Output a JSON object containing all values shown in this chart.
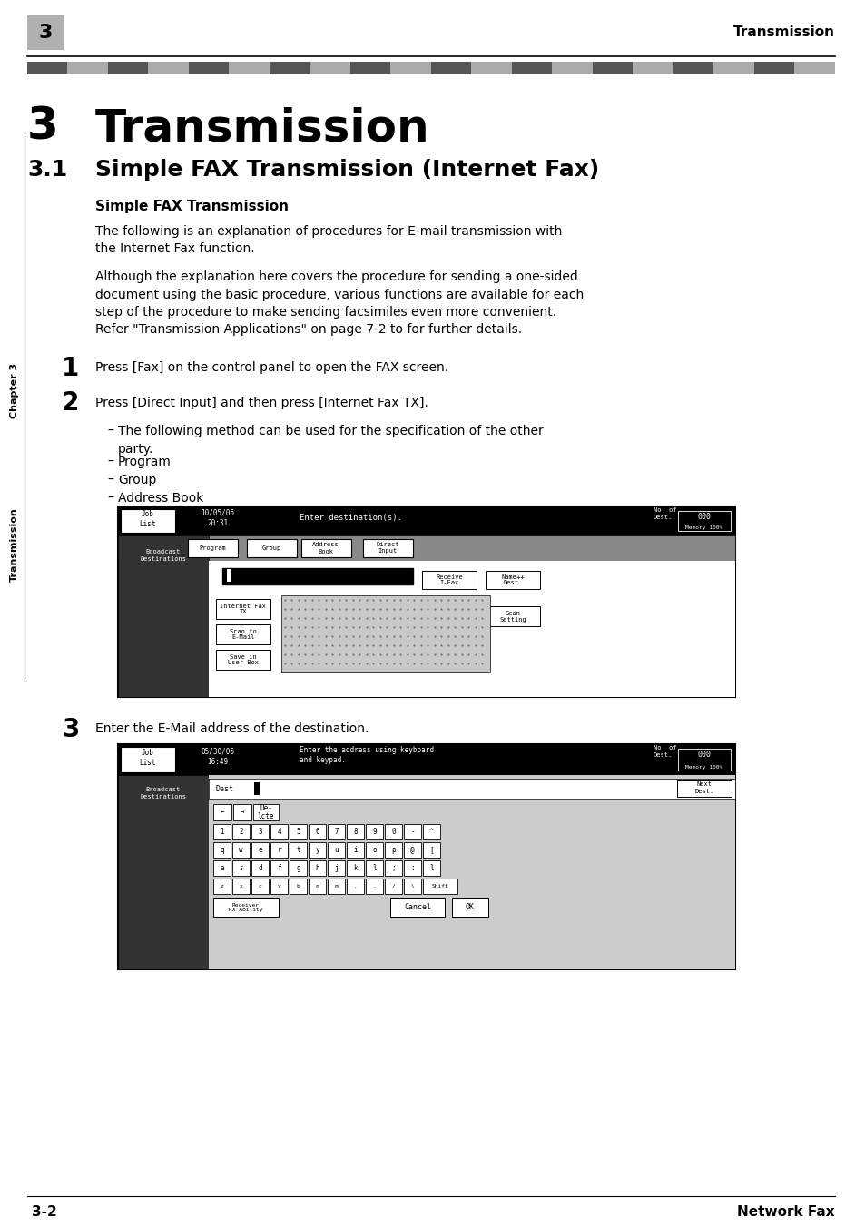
{
  "page_width": 9.54,
  "page_height": 13.52,
  "bg_color": "#ffffff",
  "header_tab_text": "3",
  "header_right_text": "Transmission",
  "chapter_number": "3",
  "chapter_title": "Transmission",
  "section_number": "3.1",
  "section_title": "Simple FAX Transmission (Internet Fax)",
  "subsection_title": "Simple FAX Transmission",
  "para1": "The following is an explanation of procedures for E-mail transmission with\nthe Internet Fax function.",
  "para2": "Although the explanation here covers the procedure for sending a one-sided\ndocument using the basic procedure, various functions are available for each\nstep of the procedure to make sending facsimiles even more convenient.\nRefer \"Transmission Applications\" on page 7-2 to for further details.",
  "step1_num": "1",
  "step1_text": "Press [Fax] on the control panel to open the FAX screen.",
  "step2_num": "2",
  "step2_text": "Press [Direct Input] and then press [Internet Fax TX].",
  "bullet1": "The following method can be used for the specification of the other\nparty.",
  "bullet2": "Program",
  "bullet3": "Group",
  "bullet4": "Address Book",
  "step3_num": "3",
  "step3_text": "Enter the E-Mail address of the destination.",
  "footer_left": "3-2",
  "footer_right": "Network Fax",
  "sidebar_text": "Transmission",
  "sidebar_chapter": "Chapter 3"
}
